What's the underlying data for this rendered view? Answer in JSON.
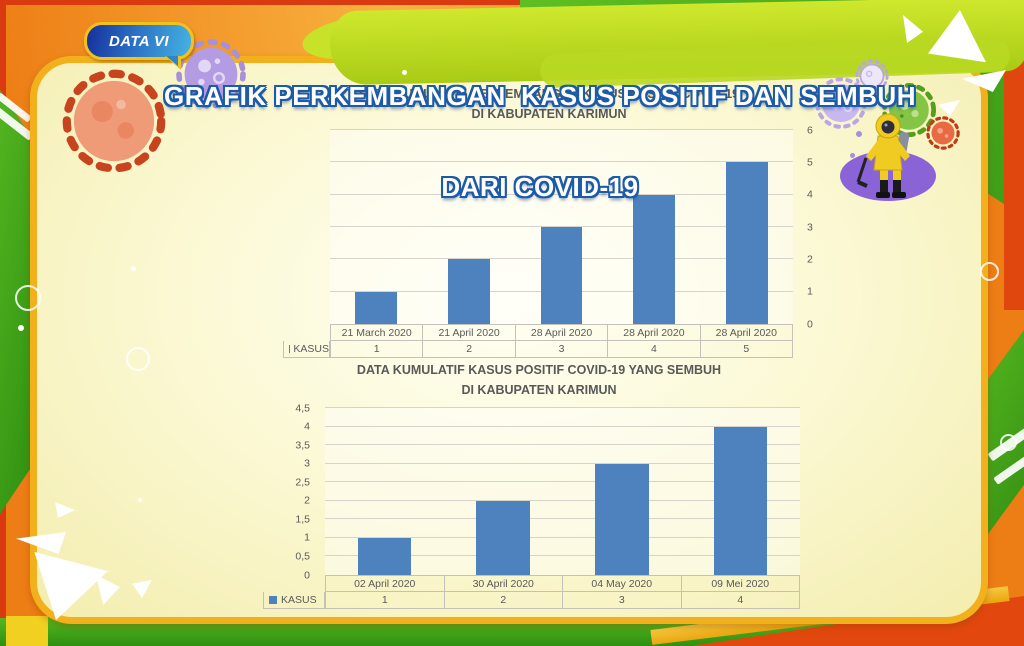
{
  "header": {
    "badge_label": "DATA VI",
    "title_line1": "GRAFIK PERKEMBANGAN  KASUS POSITIF DAN SEMBUH",
    "title_line2": "DARI COVID-19"
  },
  "chart_data": [
    {
      "type": "bar",
      "title": "DATA KUMULATIF PERKEMBANGAN KASUS POSITIF COVID-19 DI KABUPATEN KARIMUN",
      "title_line1": "DATA KUMULATIF PERKEMBANGAN KASUS POSITIF COVID-19",
      "title_line2": "DI KABUPATEN KARIMUN",
      "series_name": "KASUS",
      "categories": [
        "21 March 2020",
        "21 April 2020",
        "28 April 2020",
        "28 April 2020",
        "28 April 2020"
      ],
      "values": [
        1,
        2,
        3,
        4,
        5
      ],
      "value_labels": [
        "1",
        "2",
        "3",
        "4",
        "5"
      ],
      "xlabel": "",
      "ylabel": "",
      "ylim": [
        0,
        6
      ],
      "ytick_step": 1,
      "ytick_labels": [
        "0",
        "1",
        "2",
        "3",
        "4",
        "5",
        "6"
      ],
      "axis_side": "right",
      "grid": true,
      "legend_position": "table-left",
      "bar_color": "#4D82BE"
    },
    {
      "type": "bar",
      "title": "DATA KUMULATIF KASUS POSITIF COVID-19 YANG SEMBUH DI KABUPATEN KARIMUN",
      "title_line1": "DATA KUMULATIF KASUS POSITIF COVID-19 YANG SEMBUH",
      "title_line2": "DI KABUPATEN KARIMUN",
      "series_name": "KASUS",
      "categories": [
        "02 April 2020",
        "30 April 2020",
        "04 May 2020",
        "09 Mei 2020"
      ],
      "values": [
        1,
        2,
        3,
        4
      ],
      "value_labels": [
        "1",
        "2",
        "3",
        "4"
      ],
      "xlabel": "",
      "ylabel": "",
      "ylim": [
        0,
        4.5
      ],
      "ytick_step": 0.5,
      "ytick_labels": [
        "0",
        "0,5",
        "1",
        "1,5",
        "2",
        "2,5",
        "3",
        "3,5",
        "4",
        "4,5"
      ],
      "axis_side": "left",
      "grid": true,
      "legend_position": "table-left",
      "bar_color": "#4D82BE"
    }
  ],
  "colors": {
    "bar": "#4D82BE",
    "panel_border_gold": "#F2B11C",
    "panel_bg": "#FAF7C8",
    "title_text": "#FFFFFF",
    "title_outline_blue": "#1D5AA8",
    "chart_text_gray": "#595959",
    "header_lime": "#BFDC2F",
    "bg_orange": "#ED7D15",
    "bg_green": "#45A81E",
    "bg_red": "#D93C12",
    "badge_blue_dark": "#16309B",
    "badge_blue_light": "#45B3E2",
    "virus_orange": "#F09B78",
    "virus_purple": "#B49CE3",
    "virus_green": "#85C444",
    "virus_red": "#E96A42"
  }
}
